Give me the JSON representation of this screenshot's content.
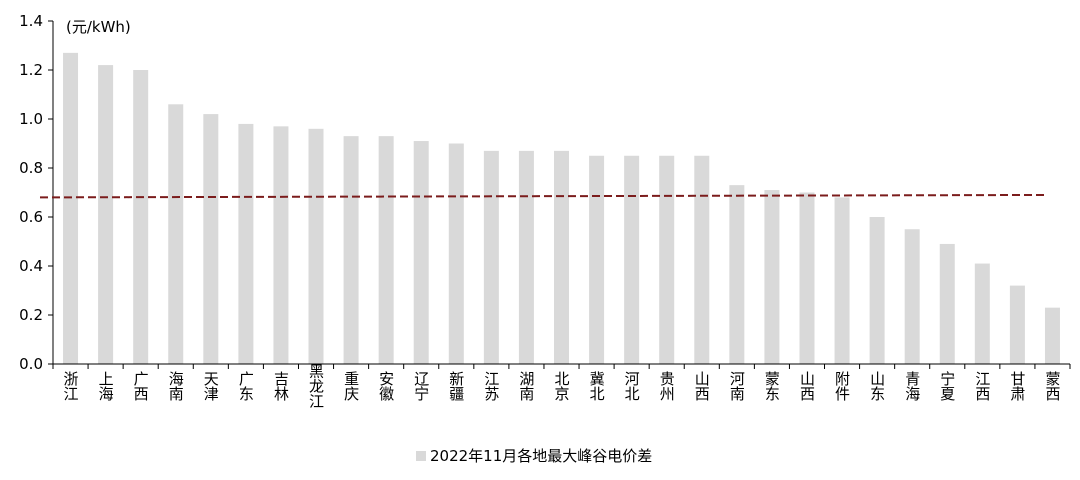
{
  "chart_data": {
    "type": "bar",
    "unit": "(元/kWh)",
    "ylim": [
      0,
      1.4
    ],
    "yticks": [
      "0.0",
      "0.2",
      "0.4",
      "0.6",
      "0.8",
      "1.0",
      "1.2",
      "1.4"
    ],
    "categories": [
      "浙江",
      "上海",
      "广西",
      "海南",
      "天津",
      "广东",
      "吉林",
      "黑龙江",
      "重庆",
      "安徽",
      "辽宁",
      "新疆",
      "江苏",
      "湖南",
      "北京",
      "冀北",
      "河北",
      "贵州",
      "山西",
      "河南",
      "蒙东",
      "山西",
      "附件",
      "山东",
      "青海",
      "宁夏",
      "江西",
      "甘肃",
      "蒙西"
    ],
    "series": [
      {
        "name": "2022年11月各地最大峰谷电价差",
        "values": [
          1.27,
          1.22,
          1.2,
          1.06,
          1.02,
          0.98,
          0.97,
          0.96,
          0.93,
          0.93,
          0.91,
          0.9,
          0.87,
          0.87,
          0.87,
          0.85,
          0.85,
          0.85,
          0.85,
          0.73,
          0.71,
          0.7,
          0.68,
          0.6,
          0.55,
          0.49,
          0.41,
          0.32,
          0.23
        ]
      }
    ],
    "reference_line": {
      "start": 0.68,
      "end": 0.69
    },
    "colors": {
      "bar": "#d9d9d9",
      "reference_line": "#7b1c1c",
      "axis": "#000000"
    },
    "grid": false,
    "legend_position": "bottom-center"
  }
}
